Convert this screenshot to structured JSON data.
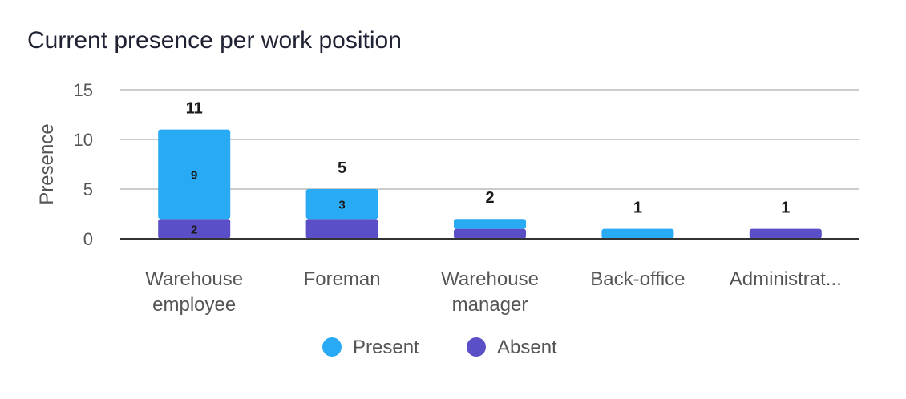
{
  "chart_data": {
    "type": "bar",
    "stacked": true,
    "title": "Current presence per work position",
    "xlabel": "",
    "ylabel": "Presence",
    "ylim": [
      0,
      15
    ],
    "yticks": [
      "0",
      "5",
      "10",
      "15"
    ],
    "categories": [
      [
        "Warehouse",
        "employee"
      ],
      [
        "Foreman"
      ],
      [
        "Warehouse",
        "manager"
      ],
      [
        "Back-office"
      ],
      [
        "Administrat..."
      ]
    ],
    "series": [
      {
        "name": "Absent",
        "color": "#5b4fc7",
        "values": [
          2,
          2,
          1,
          0,
          1
        ],
        "labels": [
          "2",
          "",
          "",
          "",
          ""
        ]
      },
      {
        "name": "Present",
        "color": "#29aaf4",
        "values": [
          9,
          3,
          1,
          1,
          0
        ],
        "labels": [
          "9",
          "3",
          "",
          "",
          ""
        ]
      }
    ],
    "totals": [
      "11",
      "5",
      "2",
      "1",
      "1"
    ],
    "grid": true,
    "legend_position": "bottom",
    "legend_order": [
      "Present",
      "Absent"
    ]
  }
}
